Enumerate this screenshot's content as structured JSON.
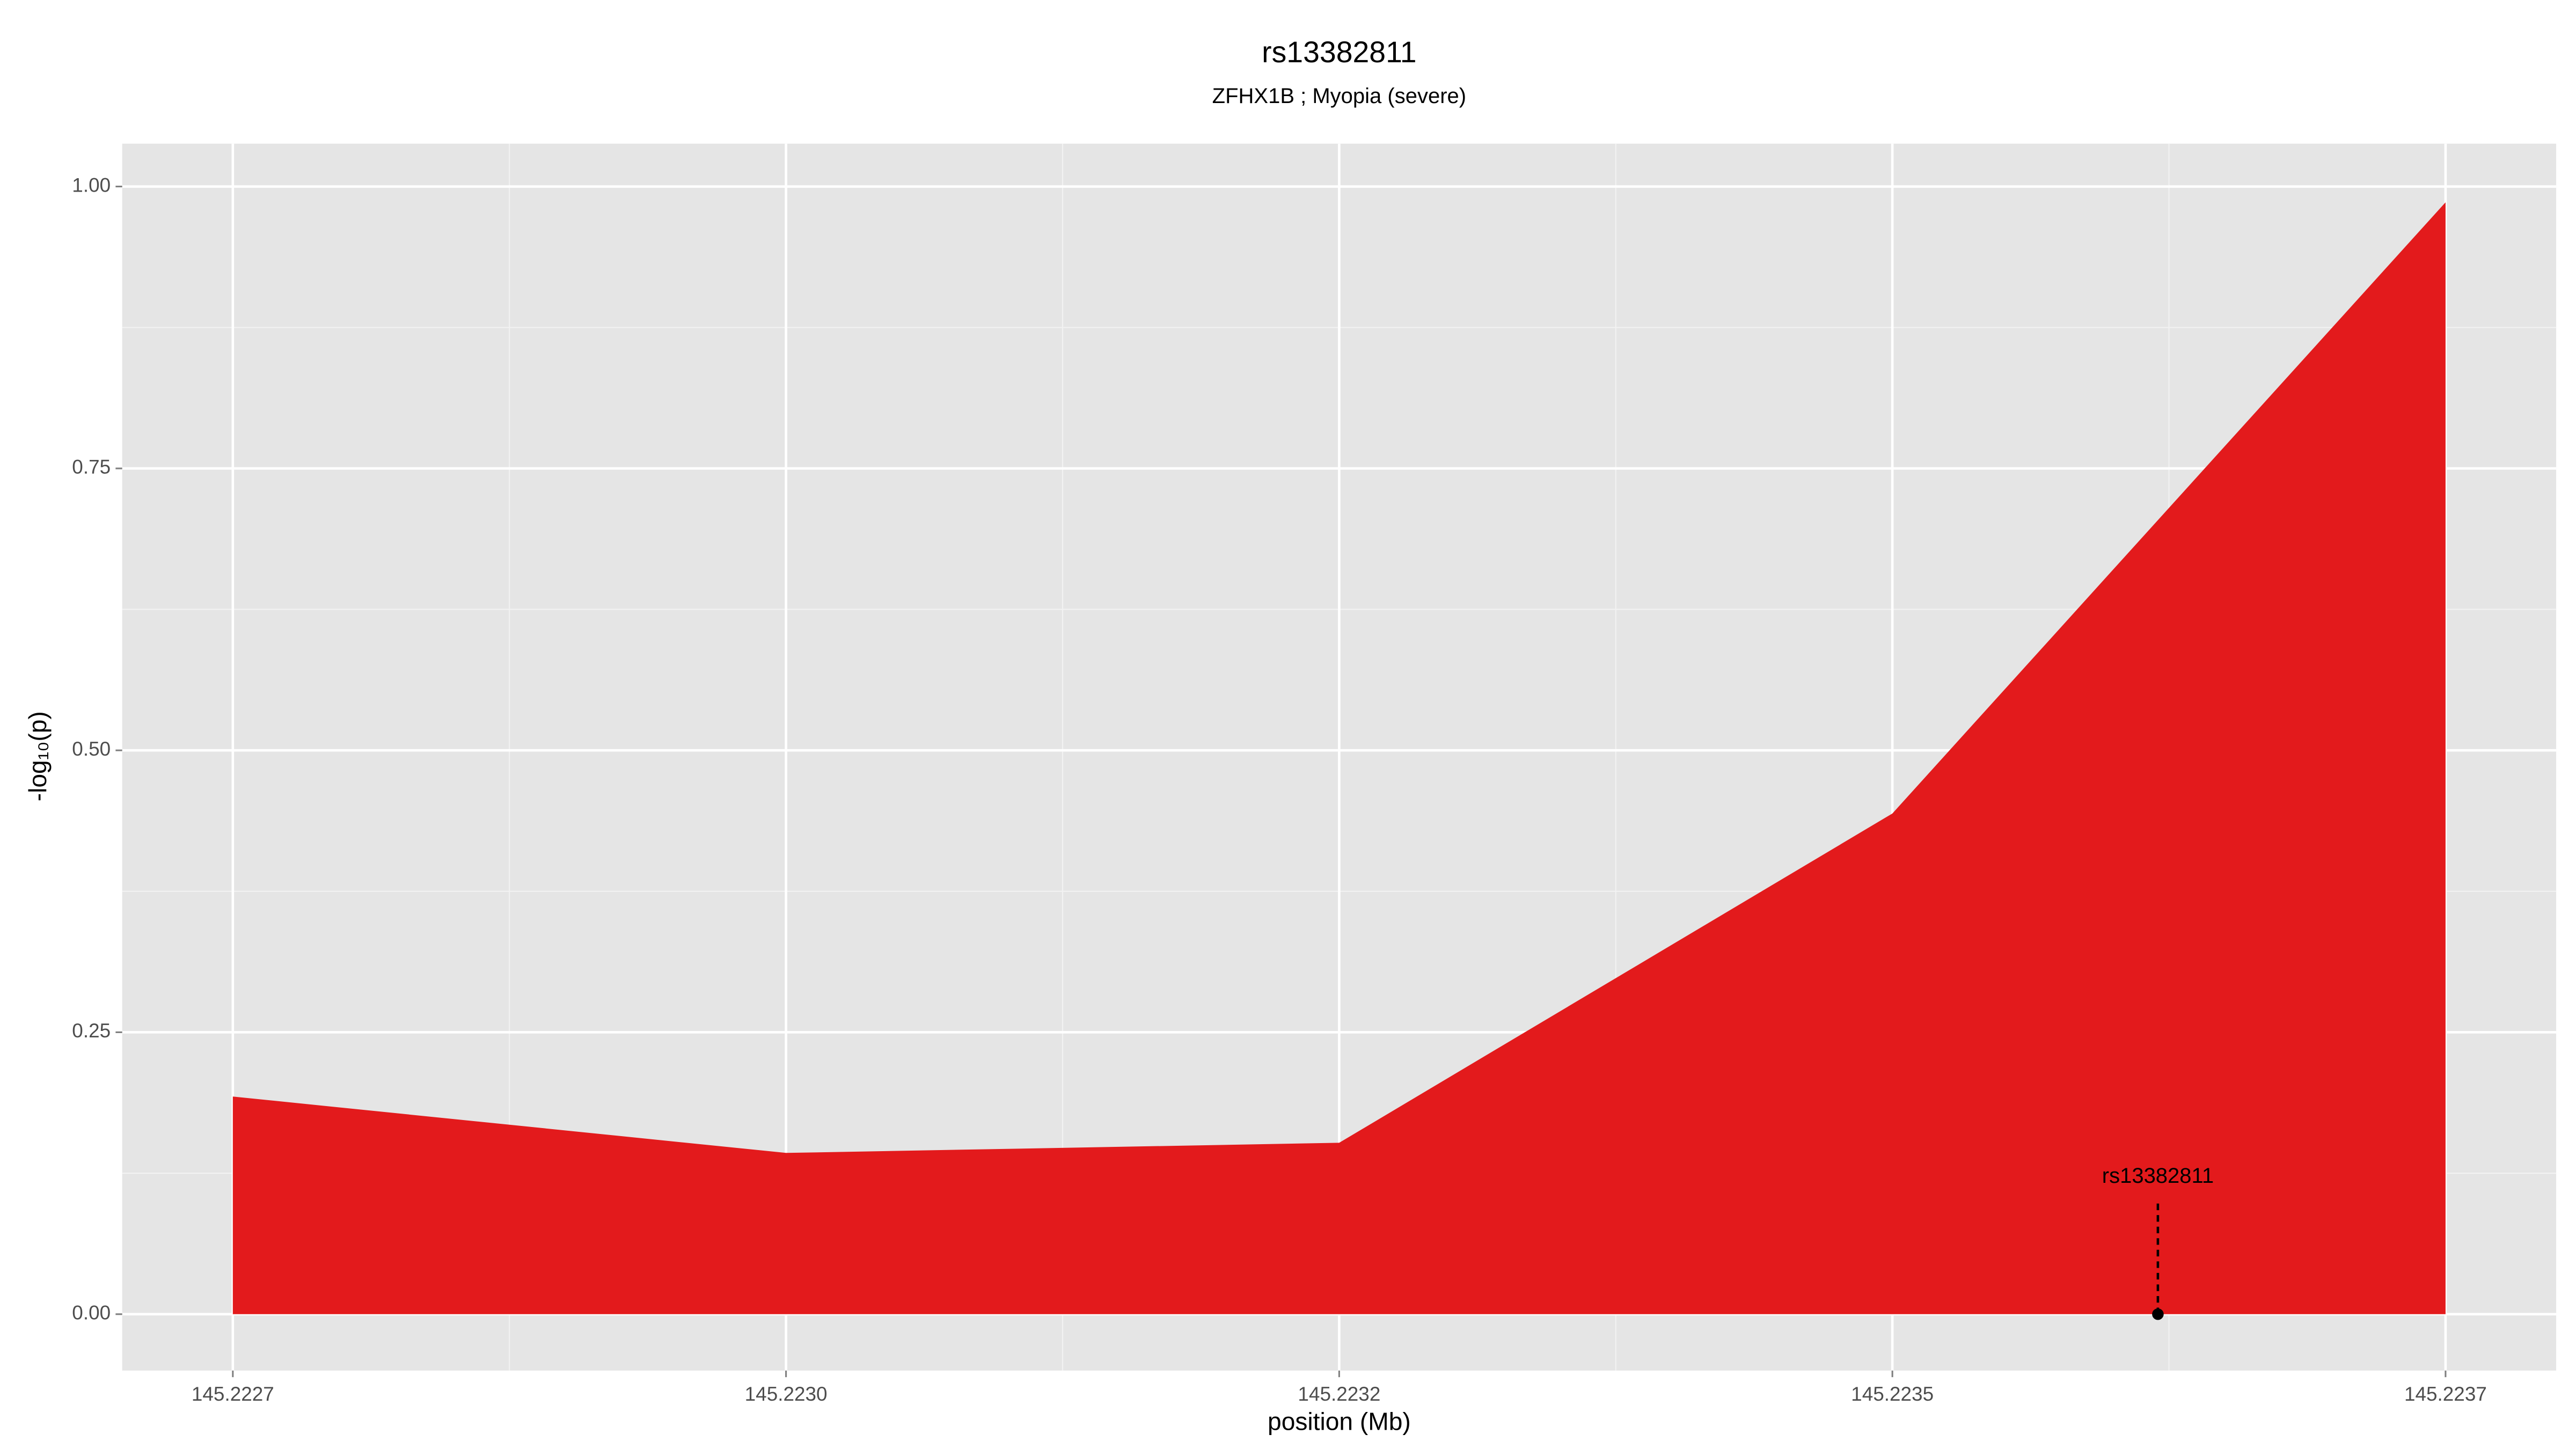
{
  "chart_data": {
    "type": "area",
    "title": "rs13382811",
    "subtitle": "ZFHX1B ; Myopia (severe)",
    "x_label": "position (Mb)",
    "y_label": "-log₁₀(p)",
    "x": [
      145.2227,
      145.22295,
      145.2232,
      145.22345,
      145.2237
    ],
    "values": [
      0.193,
      0.143,
      0.152,
      0.444,
      0.986
    ],
    "color": "#e31a1c",
    "xlim": [
      145.22265,
      145.22375
    ],
    "xticks": [
      {
        "value": 145.2227,
        "label": "145.2227"
      },
      {
        "value": 145.22295,
        "label": "145.2230"
      },
      {
        "value": 145.2232,
        "label": "145.2232"
      },
      {
        "value": 145.22345,
        "label": "145.2235"
      },
      {
        "value": 145.2237,
        "label": "145.2237"
      }
    ],
    "ylim": [
      -0.05,
      1.038
    ],
    "yticks": [
      {
        "value": 0,
        "label": "0.00"
      },
      {
        "value": 0.25,
        "label": "0.25"
      },
      {
        "value": 0.5,
        "label": "0.50"
      },
      {
        "value": 0.75,
        "label": "0.75"
      },
      {
        "value": 1,
        "label": "1.00"
      }
    ],
    "grid": true,
    "annotations": [
      {
        "label": "rs13382811",
        "x": 145.22357,
        "y": 0
      }
    ]
  }
}
